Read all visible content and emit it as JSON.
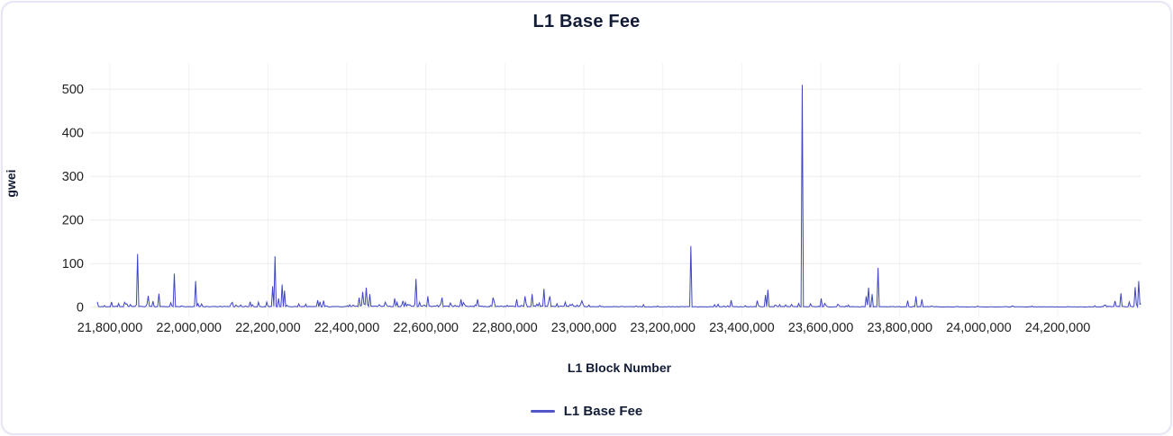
{
  "card": {
    "title": "L1 Base Fee"
  },
  "colors": {
    "series_line": "#3f45c2",
    "legend_swatch": "#5156c8",
    "card_border": "#e6e6f5",
    "grid_horizontal": "#ebebeb",
    "grid_vertical": "#f2f2f2",
    "tick_text": "#222222",
    "heading_text": "#131c36"
  },
  "chart_data": {
    "type": "line",
    "title": "L1 Base Fee",
    "xlabel": "L1 Block Number",
    "ylabel": "gwei",
    "legend_position": "bottom",
    "grid": true,
    "xlim": [
      21768000,
      24412000
    ],
    "ylim": [
      0,
      560
    ],
    "y_ticks": [
      0,
      100,
      200,
      300,
      400,
      500
    ],
    "x_ticks": [
      {
        "value": 21800000,
        "label": "21,800,000"
      },
      {
        "value": 22000000,
        "label": "22,000,000"
      },
      {
        "value": 22200000,
        "label": "22,200,000"
      },
      {
        "value": 22400000,
        "label": "22,400,000"
      },
      {
        "value": 22600000,
        "label": "22,600,000"
      },
      {
        "value": 22800000,
        "label": "22,800,000"
      },
      {
        "value": 23000000,
        "label": "23,000,000"
      },
      {
        "value": 23200000,
        "label": "23,200,000"
      },
      {
        "value": 23400000,
        "label": "23,400,000"
      },
      {
        "value": 23600000,
        "label": "23,600,000"
      },
      {
        "value": 23800000,
        "label": "23,800,000"
      },
      {
        "value": 24000000,
        "label": "24,000,000"
      },
      {
        "value": 24200000,
        "label": "24,200,000"
      }
    ],
    "series": [
      {
        "name": "L1 Base Fee",
        "unit": "gwei",
        "color": "#3f45c2",
        "baseline_gwei_typical": 2,
        "sample_step_blocks": 3000,
        "noise_seed": 7,
        "spikes": [
          [
            21869000,
            122
          ],
          [
            21897000,
            26
          ],
          [
            21923000,
            31
          ],
          [
            21962000,
            77
          ],
          [
            22018000,
            60
          ],
          [
            22213000,
            48
          ],
          [
            22219000,
            117
          ],
          [
            22228000,
            20
          ],
          [
            22235000,
            52
          ],
          [
            22241000,
            38
          ],
          [
            22327000,
            16
          ],
          [
            22340000,
            15
          ],
          [
            22432000,
            22
          ],
          [
            22440000,
            35
          ],
          [
            22450000,
            45
          ],
          [
            22458000,
            30
          ],
          [
            22520000,
            20
          ],
          [
            22574000,
            65
          ],
          [
            22605000,
            25
          ],
          [
            22640000,
            22
          ],
          [
            22690000,
            18
          ],
          [
            22730000,
            18
          ],
          [
            22770000,
            22
          ],
          [
            22830000,
            18
          ],
          [
            22852000,
            25
          ],
          [
            22870000,
            30
          ],
          [
            22900000,
            42
          ],
          [
            22915000,
            25
          ],
          [
            23271000,
            140
          ],
          [
            23373000,
            16
          ],
          [
            23440000,
            15
          ],
          [
            23460000,
            28
          ],
          [
            23465000,
            40
          ],
          [
            23552000,
            510
          ],
          [
            23600000,
            20
          ],
          [
            23715000,
            25
          ],
          [
            23722000,
            45
          ],
          [
            23730000,
            30
          ],
          [
            23745000,
            90
          ],
          [
            23820000,
            15
          ],
          [
            23840000,
            25
          ],
          [
            23855000,
            18
          ],
          [
            24345000,
            14
          ],
          [
            24359000,
            32
          ],
          [
            24380000,
            12
          ],
          [
            24395000,
            46
          ],
          [
            24405000,
            60
          ]
        ],
        "noise_regions": [
          {
            "from": 21768000,
            "to": 22400000,
            "base": 1.5,
            "spike_prob": 0.22,
            "amp": 12
          },
          {
            "from": 22400000,
            "to": 23000000,
            "base": 2.0,
            "spike_prob": 0.33,
            "amp": 13
          },
          {
            "from": 23000000,
            "to": 23320000,
            "base": 1.2,
            "spike_prob": 0.1,
            "amp": 6
          },
          {
            "from": 23320000,
            "to": 23900000,
            "base": 1.2,
            "spike_prob": 0.16,
            "amp": 8
          },
          {
            "from": 23900000,
            "to": 24310000,
            "base": 0.8,
            "spike_prob": 0.04,
            "amp": 2.5
          },
          {
            "from": 24310000,
            "to": 24412000,
            "base": 1.5,
            "spike_prob": 0.28,
            "amp": 8
          }
        ]
      }
    ]
  }
}
